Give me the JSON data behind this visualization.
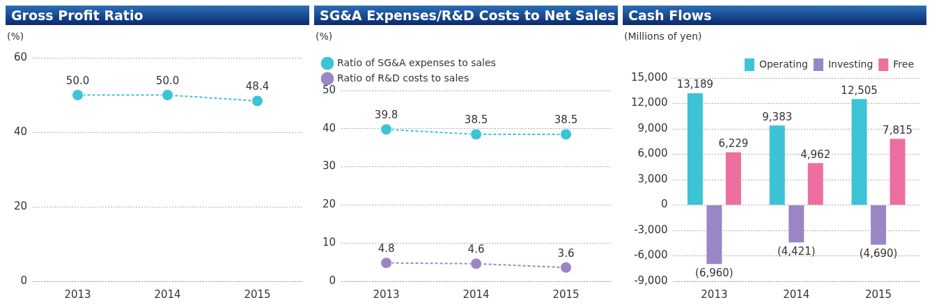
{
  "chart_data": [
    {
      "type": "line",
      "title": "Gross Profit Ratio",
      "ylabel": "(%)",
      "categories": [
        "2013",
        "2014",
        "2015"
      ],
      "series": [
        {
          "color": "#3cc3d6",
          "values": [
            50.0,
            50.0,
            48.4
          ],
          "value_labels": [
            "50.0",
            "50.0",
            "48.4"
          ]
        }
      ],
      "ylim": [
        0,
        60
      ],
      "yticks": [
        0,
        20,
        40,
        60
      ],
      "grid": "y",
      "legend": false,
      "marker": "circle",
      "line_style": "dashed"
    },
    {
      "type": "line",
      "title": "SG&A Expenses/R&D Costs to Net Sales",
      "ylabel": "(%)",
      "categories": [
        "2013",
        "2014",
        "2015"
      ],
      "series": [
        {
          "name": "Ratio of SG&A expenses to sales",
          "color": "#3cc3d6",
          "values": [
            39.8,
            38.5,
            38.5
          ],
          "value_labels": [
            "39.8",
            "38.5",
            "38.5"
          ]
        },
        {
          "name": "Ratio of R&D costs to sales",
          "color": "#9a86c4",
          "values": [
            4.8,
            4.6,
            3.6
          ],
          "value_labels": [
            "4.8",
            "4.6",
            "3.6"
          ]
        }
      ],
      "ylim": [
        0,
        50
      ],
      "yticks": [
        0,
        10,
        20,
        30,
        40,
        50
      ],
      "grid": "y",
      "legend": "top left",
      "marker": "circle",
      "line_style": "dashed"
    },
    {
      "type": "bar",
      "title": "Cash Flows",
      "ylabel": "(Millions of yen)",
      "categories": [
        "2013",
        "2014",
        "2015"
      ],
      "series": [
        {
          "name": "Operating",
          "color": "#3cc3d6",
          "values": [
            13189,
            9383,
            12505
          ],
          "value_labels": [
            "13,189",
            "9,383",
            "12,505"
          ]
        },
        {
          "name": "Investing",
          "color": "#9a86c4",
          "values": [
            -6960,
            -4421,
            -4690
          ],
          "value_labels": [
            "(6,960)",
            "(4,421)",
            "(4,690)"
          ]
        },
        {
          "name": "Free",
          "color": "#ec6fa0",
          "values": [
            6229,
            4962,
            7815
          ],
          "value_labels": [
            "6,229",
            "4,962",
            "7,815"
          ]
        }
      ],
      "ylim": [
        -9000,
        15000
      ],
      "yticks": [
        {
          "value": -9000,
          "label": "-9,000"
        },
        {
          "value": -6000,
          "label": "-6,000"
        },
        {
          "value": -3000,
          "label": "-3,000"
        },
        0,
        {
          "value": 3000,
          "label": "3,000"
        },
        {
          "value": 6000,
          "label": "6,000"
        },
        {
          "value": 9000,
          "label": "9,000"
        },
        {
          "value": 12000,
          "label": "12,000"
        },
        {
          "value": 15000,
          "label": "15,000"
        }
      ],
      "grid": "y",
      "legend": "top right"
    }
  ]
}
